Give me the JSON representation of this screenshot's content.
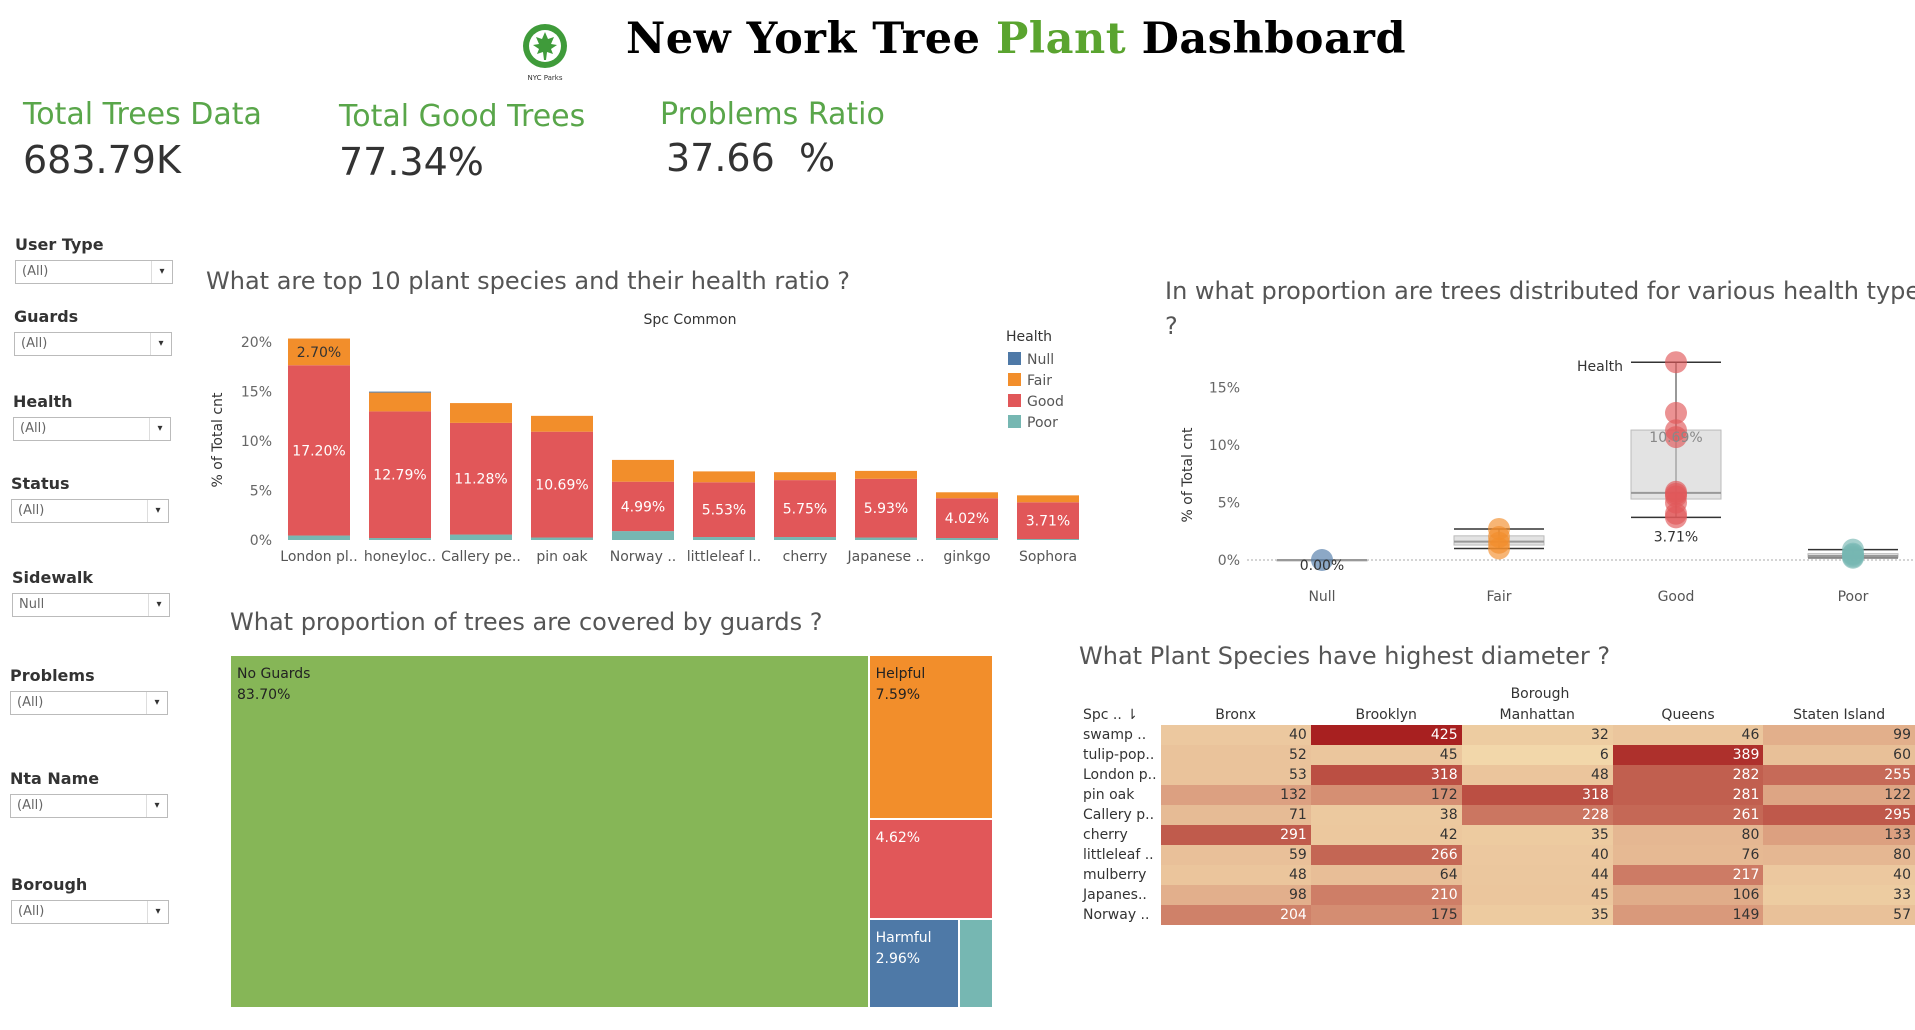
{
  "header": {
    "logo_text": "NYC Parks",
    "title_part1": "New York Tree",
    "title_part2": "Plant",
    "title_part3": "Dashboard"
  },
  "kpis": [
    {
      "label": "Total Trees Data",
      "value": "683.79K"
    },
    {
      "label": "Total Good Trees",
      "value": "77.34%"
    },
    {
      "label": "Problems Ratio",
      "value": "37.66  %"
    }
  ],
  "filters": [
    {
      "label": "User Type",
      "value": "(All)"
    },
    {
      "label": "Guards",
      "value": "(All)"
    },
    {
      "label": "Health",
      "value": "(All)"
    },
    {
      "label": "Status",
      "value": "(All)"
    },
    {
      "label": "Sidewalk",
      "value": "Null"
    },
    {
      "label": "Problems",
      "value": "(All)"
    },
    {
      "label": "Nta Name",
      "value": "(All)"
    },
    {
      "label": "Borough",
      "value": "(All)"
    }
  ],
  "colors": {
    "null": "#4e79a7",
    "fair": "#f28e2b",
    "good": "#e15759",
    "poor": "#76b7b2",
    "guards_none": "#86b657",
    "kpi_green": "#59a64a"
  },
  "chart_data": [
    {
      "type": "bar",
      "title": "What are top 10 plant species and their health ratio ?",
      "subtitle": "Spc Common",
      "ylabel": "% of Total cnt",
      "ylim": [
        0,
        20
      ],
      "y_ticks": [
        "0%",
        "5%",
        "10%",
        "15%",
        "20%"
      ],
      "legend_title": "Health",
      "legend": [
        "Null",
        "Fair",
        "Good",
        "Poor"
      ],
      "categories": [
        "London pl..",
        "honeyloc..",
        "Callery pe..",
        "pin oak",
        "Norway ..",
        "littleleaf l..",
        "cherry",
        "Japanese ..",
        "ginkgo",
        "Sophora"
      ],
      "series": [
        {
          "name": "Poor",
          "values": [
            0.45,
            0.2,
            0.55,
            0.25,
            0.9,
            0.3,
            0.3,
            0.25,
            0.2,
            0.1
          ]
        },
        {
          "name": "Good",
          "values": [
            17.2,
            12.79,
            11.28,
            10.69,
            4.99,
            5.53,
            5.75,
            5.93,
            4.02,
            3.71
          ]
        },
        {
          "name": "Fair",
          "values": [
            2.7,
            1.9,
            2.0,
            1.6,
            2.2,
            1.1,
            0.8,
            0.8,
            0.6,
            0.7
          ]
        },
        {
          "name": "Null",
          "values": [
            0,
            0.1,
            0,
            0,
            0,
            0,
            0,
            0,
            0,
            0
          ]
        }
      ],
      "data_labels": [
        "2.70%",
        "17.20%",
        "12.79%",
        "11.28%",
        "10.69%",
        "4.99%",
        "5.53%",
        "5.75%",
        "5.93%",
        "4.02%",
        "3.71%"
      ]
    },
    {
      "type": "scatter",
      "title": "In what proportion are trees distributed for various health types ?",
      "subtitle": "Health",
      "ylabel": "% of Total cnt",
      "ylim": [
        0,
        18
      ],
      "y_ticks": [
        "0%",
        "5%",
        "10%",
        "15%"
      ],
      "categories": [
        "Null",
        "Fair",
        "Good",
        "Poor"
      ],
      "points": {
        "Null": [
          0.0
        ],
        "Fair": [
          1.0,
          1.5,
          2.0,
          2.7
        ],
        "Good": [
          17.2,
          12.79,
          11.28,
          10.69,
          5.93,
          5.75,
          5.53,
          4.99,
          4.02,
          3.71
        ],
        "Poor": [
          0.2,
          0.3,
          0.45,
          0.55,
          0.9
        ]
      },
      "box": {
        "Null": [
          0,
          0,
          0,
          0,
          0
        ],
        "Fair": [
          1.0,
          1.3,
          1.6,
          2.1,
          2.7
        ],
        "Good": [
          3.71,
          5.3,
          5.84,
          11.3,
          17.2
        ],
        "Poor": [
          0.2,
          0.25,
          0.35,
          0.55,
          0.9
        ]
      },
      "annotations": [
        "0.00%",
        "10.69%",
        "3.71%"
      ]
    },
    {
      "type": "treemap",
      "title": "What proportion of trees are covered by guards ?",
      "items": [
        {
          "label": "No Guards",
          "value": "83.70%",
          "pct": 83.7
        },
        {
          "label": "Helpful",
          "value": "7.59%",
          "pct": 7.59
        },
        {
          "label": "",
          "value": "4.62%",
          "pct": 4.62
        },
        {
          "label": "Harmful",
          "value": "2.96%",
          "pct": 2.96
        },
        {
          "label": "",
          "value": "",
          "pct": 1.13
        }
      ]
    },
    {
      "type": "heatmap",
      "title": "What Plant Species have highest diameter ?",
      "column_group": "Borough",
      "row_header": "Spc ..",
      "columns": [
        "Bronx",
        "Brooklyn",
        "Manhattan",
        "Queens",
        "Staten Island"
      ],
      "rows": [
        "swamp ..",
        "tulip-pop..",
        "London p..",
        "pin oak",
        "Callery p..",
        "cherry",
        "littleleaf ..",
        "mulberry",
        "Japanes..",
        "Norway .."
      ],
      "values": [
        [
          40,
          425,
          32,
          46,
          99
        ],
        [
          52,
          45,
          6,
          389,
          60
        ],
        [
          53,
          318,
          48,
          282,
          255
        ],
        [
          132,
          172,
          318,
          281,
          122
        ],
        [
          71,
          38,
          228,
          261,
          295
        ],
        [
          291,
          42,
          35,
          80,
          133
        ],
        [
          59,
          266,
          40,
          76,
          80
        ],
        [
          48,
          64,
          44,
          217,
          40
        ],
        [
          98,
          210,
          45,
          106,
          33
        ],
        [
          204,
          175,
          35,
          149,
          57
        ]
      ]
    }
  ]
}
